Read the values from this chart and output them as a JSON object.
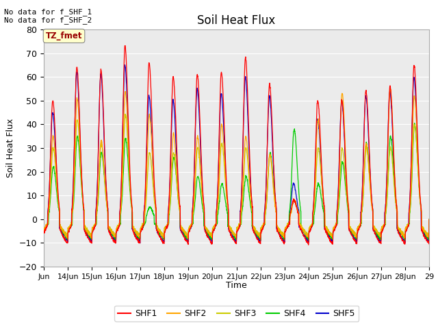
{
  "title": "Soil Heat Flux",
  "ylabel": "Soil Heat Flux",
  "xlabel": "Time",
  "ylim": [
    -20,
    80
  ],
  "bg_color": "#ebebeb",
  "annotation_text": "No data for f_SHF_1\nNo data for f_SHF_2",
  "tz_label": "TZ_fmet",
  "series_colors": {
    "SHF1": "#ff0000",
    "SHF2": "#ffa500",
    "SHF3": "#cccc00",
    "SHF4": "#00cc00",
    "SHF5": "#0000cc"
  },
  "x_tick_labels": [
    "Jun",
    "14Jun",
    "15Jun",
    "16Jun",
    "17Jun",
    "18Jun",
    "19Jun",
    "20Jun",
    "21Jun",
    "22Jun",
    "23Jun",
    "24Jun",
    "25Jun",
    "26Jun",
    "27Jun",
    "28Jun",
    "29"
  ],
  "n_days": 16,
  "samples_per_day": 144,
  "yticks": [
    -20,
    -10,
    0,
    10,
    20,
    30,
    40,
    50,
    60,
    70,
    80
  ],
  "figsize": [
    6.4,
    4.8
  ],
  "dpi": 100
}
